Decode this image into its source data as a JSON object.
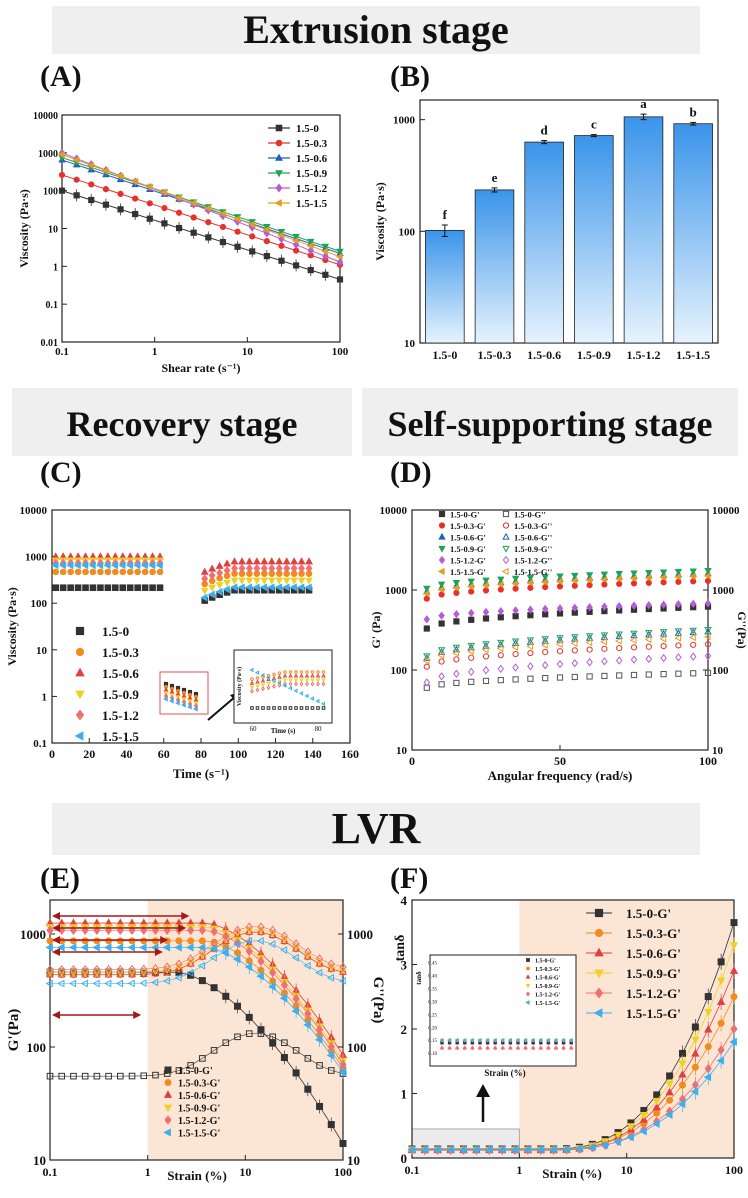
{
  "banners": {
    "extrusion": "Extrusion stage",
    "recovery": "Recovery stage",
    "self_supporting": "Self-supporting stage",
    "lvr": "LVR"
  },
  "panel_labels": {
    "A": "(A)",
    "B": "(B)",
    "C": "(C)",
    "D": "(D)",
    "E": "(E)",
    "F": "(F)"
  },
  "colors": {
    "c15_0": "#333333",
    "c15_03": "#e8302c",
    "c15_06": "#1f5fbf",
    "c15_09": "#1fa35a",
    "c15_12": "#b45ed6",
    "c15_15": "#e0a01e",
    "bar": "#5aaaf0",
    "arrow": "#a31818",
    "shade": "#fbe6d6"
  },
  "chart_data": [
    {
      "id": "A",
      "type": "line",
      "xlabel": "Shear rate (s⁻¹)",
      "ylabel": "Viscosity (Pa·s)",
      "xscale": "log",
      "yscale": "log",
      "xlim": [
        0.1,
        100
      ],
      "ylim": [
        0.01,
        10000
      ],
      "xticks": [
        "0.1",
        "1",
        "10",
        "100"
      ],
      "yticks": [
        "0.01",
        "0.1",
        "1",
        "10",
        "100",
        "1000",
        "10000"
      ],
      "legend_position": "top-right",
      "series": [
        {
          "name": "1.5-0",
          "color": "#333333",
          "marker": "square",
          "start": 100,
          "end": 0.45
        },
        {
          "name": "1.5-0.3",
          "color": "#e8302c",
          "marker": "circle",
          "start": 260,
          "end": 1.1
        },
        {
          "name": "1.5-0.6",
          "color": "#1f5fbf",
          "marker": "triangle",
          "start": 650,
          "end": 2.2
        },
        {
          "name": "1.5-0.9",
          "color": "#1fa35a",
          "marker": "tri-down",
          "start": 750,
          "end": 2.5
        },
        {
          "name": "1.5-1.2",
          "color": "#b45ed6",
          "marker": "diamond",
          "start": 1000,
          "end": 1.3
        },
        {
          "name": "1.5-1.5",
          "color": "#e0a01e",
          "marker": "tri-left",
          "start": 900,
          "end": 1.8
        }
      ]
    },
    {
      "id": "B",
      "type": "bar",
      "ylabel": "Viscosity (Pa·s)",
      "yscale": "log",
      "ylim": [
        10,
        1500
      ],
      "yticks": [
        "10",
        "100",
        "1000"
      ],
      "categories": [
        "1.5-0",
        "1.5-0.3",
        "1.5-0.6",
        "1.5-0.9",
        "1.5-1.2",
        "1.5-1.5"
      ],
      "values": [
        102,
        235,
        630,
        720,
        1060,
        920
      ],
      "errors": [
        12,
        10,
        20,
        15,
        60,
        25
      ],
      "letters": [
        "f",
        "e",
        "d",
        "c",
        "a",
        "b"
      ]
    },
    {
      "id": "C",
      "type": "scatter",
      "xlabel": "Time (s⁻¹)",
      "ylabel": "Viscosity (Pa·s)",
      "yscale": "log",
      "xlim": [
        0,
        160
      ],
      "ylim": [
        0.1,
        10000
      ],
      "xticks": [
        "0",
        "20",
        "40",
        "60",
        "80",
        "100",
        "120",
        "140",
        "160"
      ],
      "yticks": [
        "0.1",
        "1",
        "10",
        "100",
        "1000",
        "10000"
      ],
      "legend_position": "left",
      "inset": {
        "xlabel": "Time (s)",
        "ylabel": "Viscosity (Pa·s)",
        "xticks": [
          "60",
          "80"
        ]
      },
      "series": [
        {
          "name": "1.5-0",
          "color": "#333333",
          "marker": "square",
          "phase1": 215,
          "phase2": 190
        },
        {
          "name": "1.5-0.3",
          "color": "#f28a1e",
          "marker": "circle",
          "phase1": 470,
          "phase2": 430
        },
        {
          "name": "1.5-0.6",
          "color": "#e04040",
          "marker": "triangle",
          "phase1": 1000,
          "phase2": 780
        },
        {
          "name": "1.5-0.9",
          "color": "#f0d020",
          "marker": "tri-down",
          "phase1": 830,
          "phase2": 310
        },
        {
          "name": "1.5-1.2",
          "color": "#f07070",
          "marker": "diamond",
          "phase1": 720,
          "phase2": 560
        },
        {
          "name": "1.5-1.5",
          "color": "#3ab0f0",
          "marker": "tri-left",
          "phase1": 650,
          "phase2": 220
        }
      ]
    },
    {
      "id": "D",
      "type": "scatter",
      "xlabel": "Angular frequency (rad/s)",
      "ylabel": "G' (Pa)",
      "y2label": "G''(Pa)",
      "yscale": "log",
      "xlim": [
        0,
        100
      ],
      "ylim": [
        10,
        10000
      ],
      "xticks": [
        "0",
        "50",
        "100"
      ],
      "yticks": [
        "10",
        "100",
        "1000",
        "10000"
      ],
      "legend_position": "top-left",
      "series": [
        {
          "name": "1.5-0-G'",
          "color": "#333333",
          "filled": true,
          "start": 330,
          "end": 620
        },
        {
          "name": "1.5-0.3-G'",
          "color": "#e8302c",
          "filled": true,
          "start": 780,
          "end": 1300
        },
        {
          "name": "1.5-0.6-G'",
          "color": "#1f5fbf",
          "filled": true,
          "start": 950,
          "end": 1600
        },
        {
          "name": "1.5-0.9-G'",
          "color": "#1fa35a",
          "filled": true,
          "start": 1050,
          "end": 1750
        },
        {
          "name": "1.5-1.2-G'",
          "color": "#b45ed6",
          "filled": true,
          "start": 430,
          "end": 680
        },
        {
          "name": "1.5-1.5-G'",
          "color": "#e0a01e",
          "filled": true,
          "start": 900,
          "end": 1500
        },
        {
          "name": "1.5-0-G''",
          "color": "#555555",
          "filled": false,
          "start": 60,
          "end": 92
        },
        {
          "name": "1.5-0.3-G''",
          "color": "#e8302c",
          "filled": false,
          "start": 110,
          "end": 210
        },
        {
          "name": "1.5-0.6-G''",
          "color": "#1f5fbf",
          "filled": false,
          "start": 140,
          "end": 300
        },
        {
          "name": "1.5-0.9-G''",
          "color": "#1fa35a",
          "filled": false,
          "start": 150,
          "end": 320
        },
        {
          "name": "1.5-1.2-G''",
          "color": "#b45ed6",
          "filled": false,
          "start": 70,
          "end": 150
        },
        {
          "name": "1.5-1.5-G''",
          "color": "#e0a01e",
          "filled": false,
          "start": 130,
          "end": 260
        }
      ]
    },
    {
      "id": "E",
      "type": "scatter",
      "xlabel": "Strain (%)",
      "ylabel": "G'(Pa)",
      "y2label": "G''(Pa)",
      "xscale": "log",
      "yscale": "log",
      "xlim": [
        0.1,
        100
      ],
      "ylim": [
        10,
        2000
      ],
      "xticks": [
        "0.1",
        "1",
        "10",
        "100"
      ],
      "yticks": [
        "10",
        "100",
        "1000"
      ],
      "y2ticks": [
        "10",
        "100",
        "1000"
      ],
      "legend_position": "bottom-center",
      "series": [
        {
          "name": "1.5-0-G'",
          "color": "#333333",
          "marker": "square",
          "plateau": 460,
          "end": 14
        },
        {
          "name": "1.5-0.3-G'",
          "color": "#f28a1e",
          "marker": "circle",
          "plateau": 870,
          "end": 65
        },
        {
          "name": "1.5-0.6-G'",
          "color": "#e04040",
          "marker": "triangle",
          "plateau": 1250,
          "end": 85
        },
        {
          "name": "1.5-0.9-G'",
          "color": "#f0d020",
          "marker": "tri-down",
          "plateau": 1150,
          "end": 75
        },
        {
          "name": "1.5-1.2-G'",
          "color": "#f07070",
          "marker": "diamond",
          "plateau": 1080,
          "end": 70
        },
        {
          "name": "1.5-1.5-G'",
          "color": "#3ab0f0",
          "marker": "tri-left",
          "plateau": 760,
          "end": 60
        }
      ]
    },
    {
      "id": "F",
      "type": "scatter",
      "xlabel": "Strain (%)",
      "ylabel": "tanδ",
      "xscale": "log",
      "xlim": [
        0.1,
        100
      ],
      "ylim": [
        0,
        4
      ],
      "xticks": [
        "0.1",
        "1",
        "10",
        "100"
      ],
      "yticks": [
        "0",
        "1",
        "2",
        "3",
        "4"
      ],
      "legend_position": "top-right",
      "inset": {
        "xlabel": "Strain (%)",
        "ylabel": "tanδ",
        "yticks": [
          "0.10",
          "0.15",
          "0.20",
          "0.25",
          "0.30",
          "0.35",
          "0.40",
          "0.45"
        ]
      },
      "series": [
        {
          "name": "1.5-0-G'",
          "color": "#333333",
          "marker": "square",
          "base": 0.14,
          "end": 3.65
        },
        {
          "name": "1.5-0.3-G'",
          "color": "#f28a1e",
          "marker": "circle",
          "base": 0.13,
          "end": 2.5
        },
        {
          "name": "1.5-0.6-G'",
          "color": "#e04040",
          "marker": "triangle",
          "base": 0.12,
          "end": 2.9
        },
        {
          "name": "1.5-0.9-G'",
          "color": "#f0d020",
          "marker": "tri-down",
          "base": 0.13,
          "end": 3.3
        },
        {
          "name": "1.5-1.2-G'",
          "color": "#f07070",
          "marker": "diamond",
          "base": 0.12,
          "end": 2.0
        },
        {
          "name": "1.5-1.5-G'",
          "color": "#3ab0f0",
          "marker": "tri-left",
          "base": 0.13,
          "end": 1.8
        }
      ]
    }
  ]
}
